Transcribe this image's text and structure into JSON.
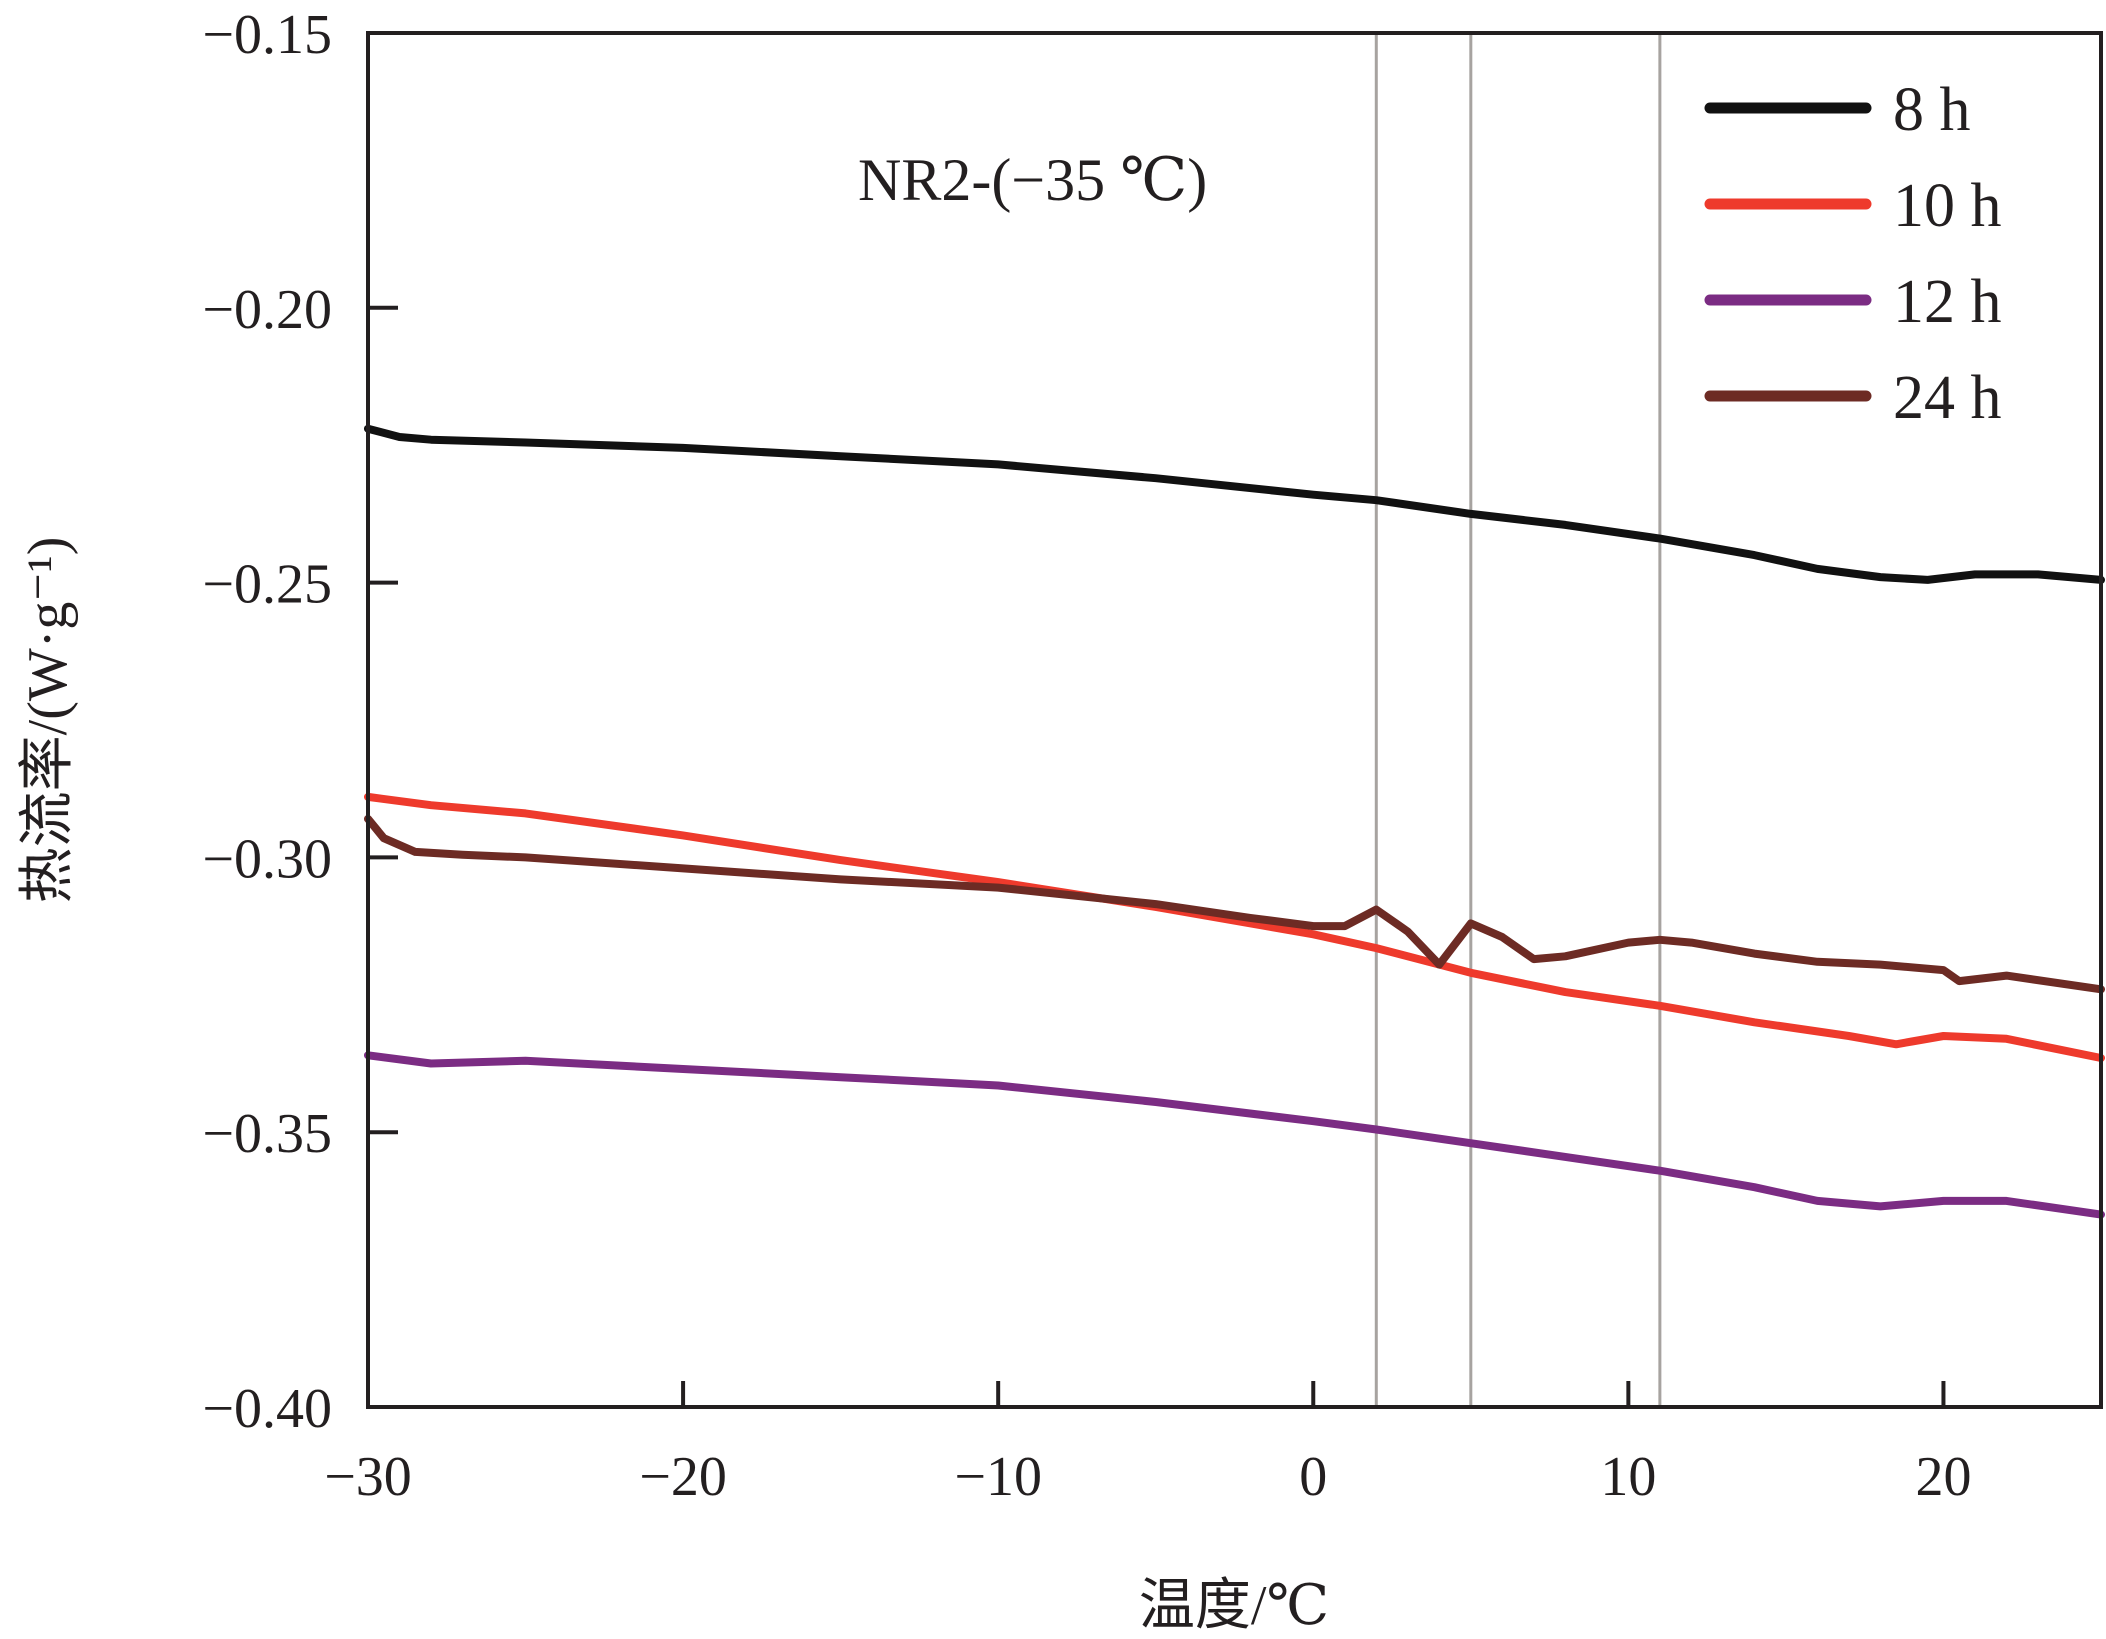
{
  "chart_data": {
    "type": "line",
    "title": "",
    "annotation": "NR2-(−35 ℃)",
    "xlabel": "温度/℃",
    "ylabel": "热流率/(W·g⁻¹)",
    "xlim": [
      -30,
      25
    ],
    "ylim": [
      -0.4,
      -0.15
    ],
    "x_ticks": [
      -30,
      -20,
      -10,
      0,
      10,
      20
    ],
    "x_tick_labels": [
      "−30",
      "−20",
      "−10",
      "0",
      "10",
      "20"
    ],
    "y_ticks": [
      -0.15,
      -0.2,
      -0.25,
      -0.3,
      -0.35,
      -0.4
    ],
    "y_tick_labels": [
      "−0.15",
      "−0.20",
      "−0.25",
      "−0.30",
      "−0.35",
      "−0.40"
    ],
    "reference_lines_x": [
      2,
      5,
      11
    ],
    "grid": false,
    "legend_position": "top-right",
    "series": [
      {
        "name": "8 h",
        "color": "#111111",
        "x": [
          -30,
          -29,
          -28,
          -25,
          -20,
          -15,
          -10,
          -5,
          0,
          2,
          5,
          8,
          11,
          14,
          16,
          18,
          19.5,
          21,
          23,
          25
        ],
        "y": [
          -0.222,
          -0.2235,
          -0.224,
          -0.2245,
          -0.2255,
          -0.227,
          -0.2285,
          -0.231,
          -0.234,
          -0.235,
          -0.2375,
          -0.2395,
          -0.242,
          -0.245,
          -0.2475,
          -0.249,
          -0.2495,
          -0.2485,
          -0.2485,
          -0.2495
        ]
      },
      {
        "name": "10 h",
        "color": "#ee3a2c",
        "x": [
          -30,
          -28,
          -25,
          -20,
          -15,
          -10,
          -5,
          0,
          2,
          5,
          8,
          11,
          14,
          17,
          18.5,
          19,
          20,
          22,
          25
        ],
        "y": [
          -0.289,
          -0.2905,
          -0.292,
          -0.296,
          -0.3005,
          -0.3045,
          -0.309,
          -0.314,
          -0.3165,
          -0.321,
          -0.3245,
          -0.327,
          -0.33,
          -0.3325,
          -0.334,
          -0.3335,
          -0.3325,
          -0.333,
          -0.3365
        ]
      },
      {
        "name": "12 h",
        "color": "#7b2c83",
        "x": [
          -30,
          -28,
          -25,
          -20,
          -15,
          -10,
          -5,
          0,
          2,
          5,
          8,
          11,
          14,
          16,
          18,
          20,
          22,
          25
        ],
        "y": [
          -0.336,
          -0.3375,
          -0.337,
          -0.3385,
          -0.34,
          -0.3415,
          -0.3445,
          -0.348,
          -0.3495,
          -0.352,
          -0.3545,
          -0.357,
          -0.36,
          -0.3625,
          -0.3635,
          -0.3625,
          -0.3625,
          -0.365
        ]
      },
      {
        "name": "24 h",
        "color": "#6d2b24",
        "x": [
          -30,
          -29.5,
          -28.5,
          -27,
          -25,
          -20,
          -15,
          -10,
          -5,
          -2,
          0,
          1,
          2,
          3,
          4,
          5,
          6,
          7,
          8,
          10,
          11,
          12,
          14,
          16,
          18,
          20,
          20.5,
          22,
          25
        ],
        "y": [
          -0.293,
          -0.2965,
          -0.299,
          -0.2995,
          -0.3,
          -0.302,
          -0.304,
          -0.3055,
          -0.3085,
          -0.311,
          -0.3125,
          -0.3125,
          -0.3095,
          -0.3135,
          -0.3195,
          -0.312,
          -0.3145,
          -0.3185,
          -0.318,
          -0.3155,
          -0.315,
          -0.3155,
          -0.3175,
          -0.319,
          -0.3195,
          -0.3205,
          -0.3225,
          -0.3215,
          -0.324
        ]
      }
    ]
  }
}
